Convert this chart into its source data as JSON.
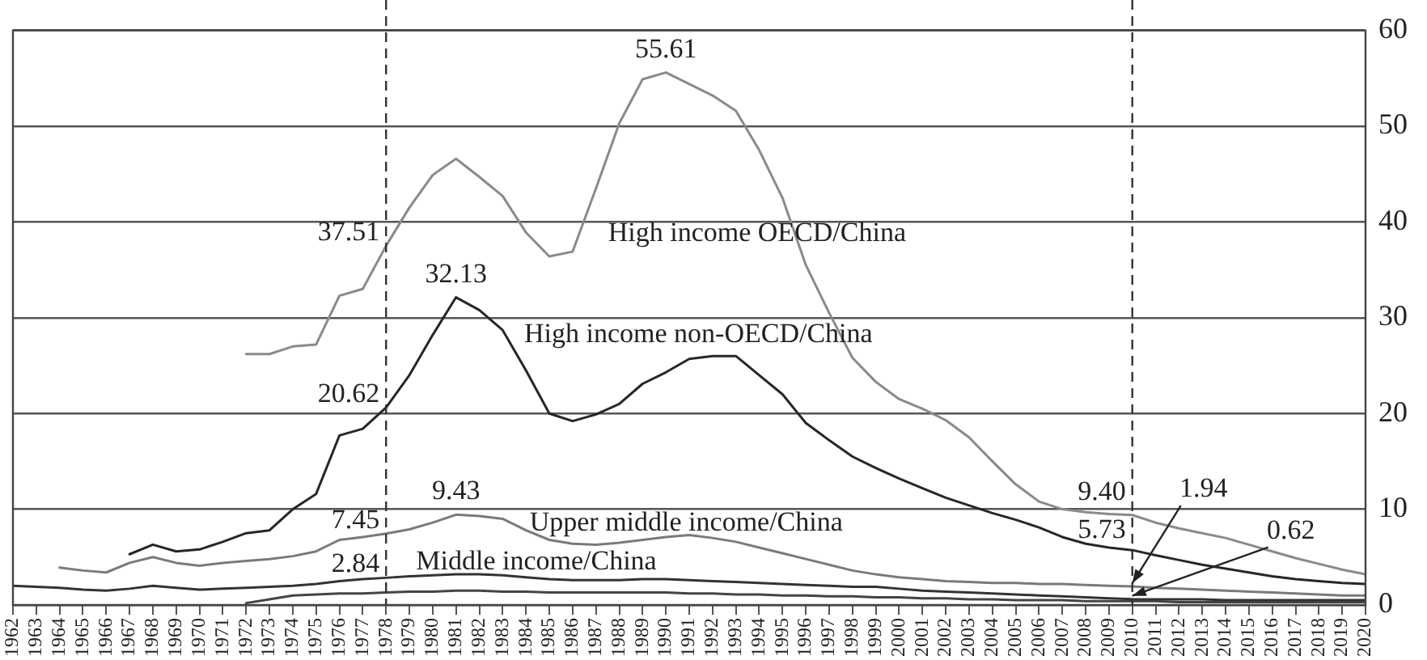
{
  "chart_data": {
    "type": "line",
    "x": [
      1962,
      1963,
      1964,
      1965,
      1966,
      1967,
      1968,
      1969,
      1970,
      1971,
      1972,
      1973,
      1974,
      1975,
      1976,
      1977,
      1978,
      1979,
      1980,
      1981,
      1982,
      1983,
      1984,
      1985,
      1986,
      1987,
      1988,
      1989,
      1990,
      1991,
      1992,
      1993,
      1994,
      1995,
      1996,
      1997,
      1998,
      1999,
      2000,
      2001,
      2002,
      2003,
      2004,
      2005,
      2006,
      2007,
      2008,
      2009,
      2010,
      2011,
      2012,
      2013,
      2014,
      2015,
      2016,
      2017,
      2018,
      2019,
      2020
    ],
    "series": [
      {
        "color": "#8a8a8a",
        "values": [
          null,
          null,
          null,
          null,
          null,
          null,
          null,
          null,
          null,
          null,
          26.2,
          26.2,
          27.0,
          27.2,
          32.3,
          33.0,
          37.51,
          41.5,
          44.9,
          46.6,
          44.7,
          42.7,
          38.9,
          36.4,
          36.9,
          43.5,
          50.3,
          54.9,
          55.61,
          54.4,
          53.2,
          51.6,
          47.5,
          42.5,
          35.5,
          30.5,
          25.8,
          23.3,
          21.5,
          20.5,
          19.3,
          17.5,
          15.0,
          12.6,
          10.8,
          10.0,
          9.7,
          9.5,
          9.4,
          8.6,
          8.0,
          7.5,
          7.0,
          6.3,
          5.6,
          4.9,
          4.3,
          3.7,
          3.2
        ]
      },
      {
        "color": "#262626",
        "values": [
          null,
          null,
          null,
          null,
          null,
          5.3,
          6.3,
          5.6,
          5.8,
          6.6,
          7.5,
          7.8,
          10.0,
          11.6,
          17.7,
          18.4,
          20.62,
          24.0,
          28.2,
          32.13,
          30.8,
          28.7,
          24.5,
          20.0,
          19.2,
          19.9,
          21.0,
          23.1,
          24.3,
          25.7,
          26.0,
          26.0,
          24.0,
          22.0,
          19.0,
          17.2,
          15.5,
          14.3,
          13.2,
          12.2,
          11.2,
          10.4,
          9.6,
          8.9,
          8.1,
          7.1,
          6.4,
          6.0,
          5.73,
          5.2,
          4.7,
          4.2,
          3.8,
          3.4,
          3.0,
          2.7,
          2.5,
          2.3,
          2.2
        ]
      },
      {
        "color": "#7a7a7a",
        "values": [
          null,
          null,
          3.9,
          3.6,
          3.4,
          4.4,
          5.0,
          4.4,
          4.1,
          4.4,
          4.6,
          4.8,
          5.1,
          5.6,
          6.8,
          7.1,
          7.45,
          7.9,
          8.6,
          9.43,
          9.3,
          9.0,
          7.8,
          6.8,
          6.4,
          6.3,
          6.5,
          6.8,
          7.1,
          7.3,
          7.0,
          6.6,
          6.0,
          5.4,
          4.8,
          4.2,
          3.6,
          3.2,
          2.9,
          2.7,
          2.5,
          2.4,
          2.3,
          2.3,
          2.2,
          2.2,
          2.1,
          2.0,
          1.94,
          1.8,
          1.7,
          1.6,
          1.5,
          1.4,
          1.3,
          1.2,
          1.1,
          1.0,
          1.0
        ]
      },
      {
        "color": "#333333",
        "values": [
          2.0,
          1.9,
          1.8,
          1.6,
          1.5,
          1.7,
          2.0,
          1.8,
          1.6,
          1.7,
          1.8,
          1.9,
          2.0,
          2.2,
          2.5,
          2.7,
          2.84,
          3.0,
          3.1,
          3.2,
          3.2,
          3.1,
          2.9,
          2.7,
          2.6,
          2.6,
          2.6,
          2.7,
          2.7,
          2.6,
          2.5,
          2.4,
          2.3,
          2.2,
          2.1,
          2.0,
          1.9,
          1.9,
          1.7,
          1.5,
          1.4,
          1.3,
          1.2,
          1.1,
          1.0,
          0.9,
          0.8,
          0.7,
          0.62,
          0.6,
          0.6,
          0.6,
          0.5,
          0.5,
          0.5,
          0.5,
          0.5,
          0.5,
          0.5
        ]
      },
      {
        "color": "#444444",
        "values": [
          null,
          null,
          null,
          null,
          null,
          null,
          null,
          null,
          null,
          null,
          0.2,
          0.6,
          1.0,
          1.1,
          1.2,
          1.2,
          1.3,
          1.4,
          1.4,
          1.5,
          1.5,
          1.4,
          1.4,
          1.3,
          1.3,
          1.3,
          1.3,
          1.3,
          1.3,
          1.2,
          1.2,
          1.1,
          1.1,
          1.0,
          1.0,
          0.9,
          0.9,
          0.8,
          0.8,
          0.7,
          0.7,
          0.6,
          0.6,
          0.5,
          0.5,
          0.5,
          0.4,
          0.4,
          0.4,
          0.4,
          0.3,
          0.3,
          0.3,
          0.3,
          0.3,
          0.3,
          0.3,
          0.3,
          0.3
        ]
      }
    ],
    "xlim": [
      1962,
      2020
    ],
    "xticks": [
      1962,
      1963,
      1964,
      1965,
      1966,
      1967,
      1968,
      1969,
      1970,
      1971,
      1972,
      1973,
      1974,
      1975,
      1976,
      1977,
      1978,
      1979,
      1980,
      1981,
      1982,
      1983,
      1984,
      1985,
      1986,
      1987,
      1988,
      1989,
      1990,
      1991,
      1992,
      1993,
      1994,
      1995,
      1996,
      1997,
      1998,
      1999,
      2000,
      2001,
      2002,
      2003,
      2004,
      2005,
      2006,
      2007,
      2008,
      2009,
      2010,
      2011,
      2012,
      2013,
      2014,
      2015,
      2016,
      2017,
      2018,
      2019,
      2020
    ],
    "ylim": [
      0,
      60
    ],
    "yticks": [
      0,
      10,
      20,
      30,
      40,
      50,
      60
    ],
    "grid": "y",
    "legend": false,
    "marker": "none",
    "line_style": "solid",
    "ref_lines": [
      {
        "axis": "x",
        "value": 1978,
        "line_style": "dashed",
        "color": "#333333"
      },
      {
        "axis": "x",
        "value": 2010,
        "line_style": "dashed",
        "color": "#333333"
      }
    ],
    "annotations": [
      "High income OECD/China",
      "High income non-OECD/China",
      "Upper middle income/China",
      "Middle income/China",
      {
        "text": "55.61",
        "x": 1990,
        "y": 55.61
      },
      {
        "text": "37.51",
        "x": 1978,
        "y": 37.51
      },
      {
        "text": "32.13",
        "x": 1981,
        "y": 32.13
      },
      {
        "text": "20.62",
        "x": 1978,
        "y": 20.62
      },
      {
        "text": "9.43",
        "x": 1981,
        "y": 9.43
      },
      {
        "text": "7.45",
        "x": 1978,
        "y": 7.45
      },
      {
        "text": "2.84",
        "x": 1978,
        "y": 2.84
      },
      {
        "text": "9.40",
        "x": 2010,
        "y": 9.4
      },
      {
        "text": "5.73",
        "x": 2010,
        "y": 5.73
      },
      {
        "text": "1.94",
        "x": 2010,
        "y": 1.94
      },
      {
        "text": "0.62",
        "x": 2010,
        "y": 0.62
      }
    ]
  }
}
